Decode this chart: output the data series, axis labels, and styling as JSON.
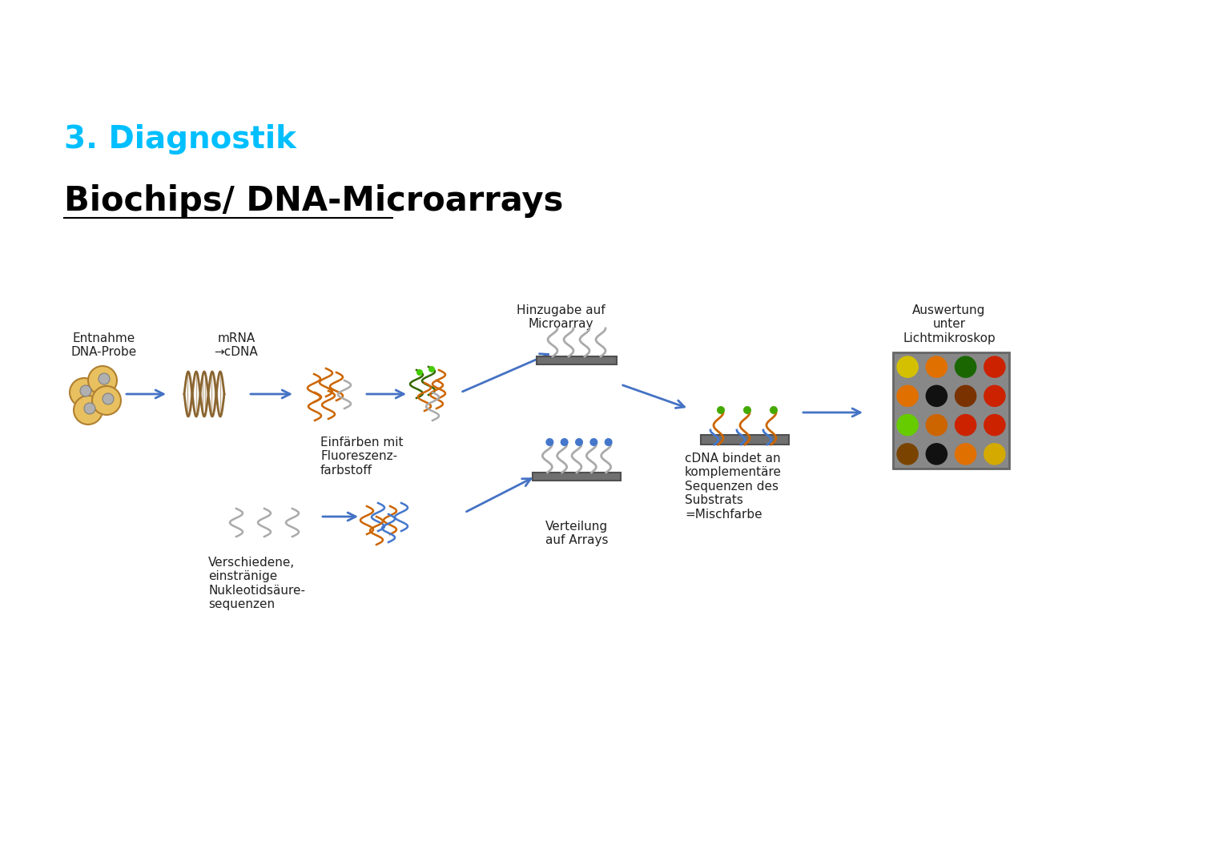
{
  "title": "3. Diagnostik",
  "subtitle": "Biochips/ DNA-Microarrays",
  "bg_color": "#ffffff",
  "title_color": "#00BFFF",
  "subtitle_color": "#000000",
  "arrow_color": "#4472C4",
  "labels": {
    "label1": "Entnahme\nDNA-Probe",
    "label2": "mRNA\n→cDNA",
    "label3": "Einfärben mit\nFluoreszenz-\nfarbstoff",
    "label4": "Hinzugabe auf\nMicroarray",
    "label5": "Verteilung\nauf Arrays",
    "label6": "cDNA bindet an\nkomplementäre\nSequenzen des\nSubstrats\n=Mischfarbe",
    "label7": "Auswertung\nunter\nLichtmikroskop",
    "label8": "Verschiedene,\neinstränige\nNukleotidsäure-\nsequenzen"
  },
  "grid_colors": [
    [
      "#d4c000",
      "#e07000",
      "#1a6600",
      "#cc2200"
    ],
    [
      "#e07000",
      "#111111",
      "#7a3200",
      "#cc2200"
    ],
    [
      "#66cc00",
      "#cc6400",
      "#cc2200",
      "#cc2200"
    ],
    [
      "#7a4400",
      "#111111",
      "#e07000",
      "#d4aa00"
    ]
  ]
}
